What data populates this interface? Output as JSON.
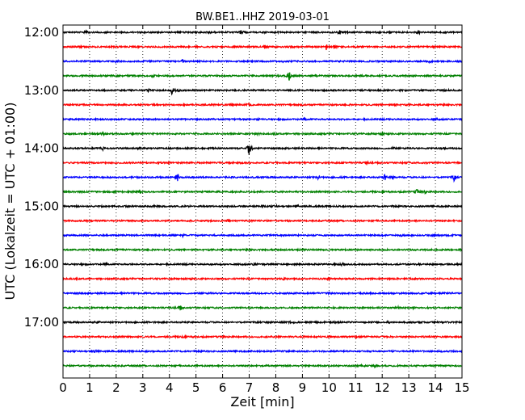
{
  "chart_data": {
    "type": "line",
    "title": "BW.BE1..HHZ 2019-03-01",
    "xlabel": "Zeit  [min]",
    "ylabel": "UTC (Lokalzeit = UTC + 01:00)",
    "xlim": [
      0,
      15
    ],
    "x_ticks": [
      "0",
      "1",
      "2",
      "3",
      "4",
      "5",
      "6",
      "7",
      "8",
      "9",
      "10",
      "11",
      "12",
      "13",
      "14",
      "15"
    ],
    "y_ticks": [
      "12:00",
      "13:00",
      "14:00",
      "15:00",
      "16:00",
      "17:00"
    ],
    "grid_x": true,
    "grid_y": false,
    "trace_interval_minutes": 15,
    "series_colors": [
      "#000000",
      "#ff0000",
      "#0000ff",
      "#008000"
    ],
    "traces": [
      {
        "start": "12:00",
        "color": "#000000",
        "events": [
          [
            0.9,
            0.6
          ],
          [
            5.6,
            0.5
          ],
          [
            6.7,
            0.8
          ],
          [
            10.4,
            0.9
          ],
          [
            13.4,
            0.6
          ]
        ]
      },
      {
        "start": "12:15",
        "color": "#ff0000",
        "events": [
          [
            7.6,
            0.7
          ],
          [
            9.9,
            1.1
          ],
          [
            10.2,
            0.8
          ],
          [
            8.6,
            0.4
          ]
        ]
      },
      {
        "start": "12:30",
        "color": "#0000ff",
        "events": [
          [
            2.0,
            0.4
          ],
          [
            4.5,
            0.7
          ],
          [
            8.3,
            0.4
          ],
          [
            13.8,
            0.7
          ]
        ]
      },
      {
        "start": "12:45",
        "color": "#008000",
        "events": [
          [
            3.4,
            0.4
          ],
          [
            8.5,
            1.8
          ],
          [
            9.5,
            0.5
          ],
          [
            11.2,
            0.4
          ]
        ]
      },
      {
        "start": "13:00",
        "color": "#000000",
        "events": [
          [
            3.2,
            0.5
          ],
          [
            4.1,
            1.7
          ],
          [
            4.3,
            0.9
          ],
          [
            14.4,
            0.6
          ]
        ]
      },
      {
        "start": "13:15",
        "color": "#ff0000",
        "events": [
          [
            7.0,
            0.5
          ],
          [
            12.5,
            0.4
          ]
        ]
      },
      {
        "start": "13:30",
        "color": "#0000ff",
        "events": [
          [
            5.1,
            0.4
          ],
          [
            9.1,
            0.4
          ],
          [
            14.0,
            0.4
          ]
        ]
      },
      {
        "start": "13:45",
        "color": "#008000",
        "events": [
          [
            1.5,
            0.6
          ],
          [
            7.3,
            0.3
          ],
          [
            12.0,
            0.3
          ]
        ]
      },
      {
        "start": "14:00",
        "color": "#000000",
        "events": [
          [
            1.5,
            0.5
          ],
          [
            2.9,
            0.6
          ],
          [
            7.0,
            3.2
          ],
          [
            12.4,
            0.5
          ],
          [
            14.3,
            0.4
          ]
        ]
      },
      {
        "start": "14:15",
        "color": "#ff0000",
        "events": [
          [
            11.4,
            0.6
          ],
          [
            13.6,
            0.3
          ]
        ]
      },
      {
        "start": "14:30",
        "color": "#0000ff",
        "events": [
          [
            4.3,
            1.6
          ],
          [
            9.6,
            0.7
          ],
          [
            12.1,
            1.0
          ],
          [
            12.4,
            0.7
          ],
          [
            14.7,
            1.2
          ]
        ]
      },
      {
        "start": "14:45",
        "color": "#008000",
        "events": [
          [
            2.9,
            0.6
          ],
          [
            13.3,
            0.9
          ],
          [
            13.6,
            0.6
          ]
        ]
      },
      {
        "start": "15:00",
        "color": "#000000",
        "events": [
          [
            3.4,
            0.3
          ],
          [
            7.5,
            0.4
          ],
          [
            8.0,
            0.4
          ],
          [
            8.8,
            0.5
          ]
        ]
      },
      {
        "start": "15:15",
        "color": "#ff0000",
        "events": [
          [
            6.2,
            0.3
          ]
        ]
      },
      {
        "start": "15:30",
        "color": "#0000ff",
        "events": [
          [
            4.5,
            0.4
          ],
          [
            12.7,
            0.5
          ]
        ]
      },
      {
        "start": "15:45",
        "color": "#008000",
        "events": [
          [
            2.1,
            0.3
          ],
          [
            9.0,
            0.3
          ]
        ]
      },
      {
        "start": "16:00",
        "color": "#000000",
        "events": [
          [
            1.6,
            0.4
          ],
          [
            7.2,
            0.8
          ],
          [
            10.5,
            0.4
          ],
          [
            13.4,
            0.4
          ]
        ]
      },
      {
        "start": "16:15",
        "color": "#ff0000",
        "events": [
          [
            8.3,
            0.3
          ],
          [
            10.0,
            0.3
          ]
        ]
      },
      {
        "start": "16:30",
        "color": "#0000ff",
        "events": [
          [
            10.0,
            0.3
          ]
        ]
      },
      {
        "start": "16:45",
        "color": "#008000",
        "events": [
          [
            4.4,
            0.8
          ],
          [
            13.2,
            0.5
          ],
          [
            12.6,
            0.3
          ]
        ]
      },
      {
        "start": "17:00",
        "color": "#000000",
        "events": [
          [
            1.3,
            0.5
          ],
          [
            8.6,
            0.6
          ],
          [
            12.2,
            0.3
          ]
        ]
      },
      {
        "start": "17:15",
        "color": "#ff0000",
        "events": [
          [
            4.5,
            0.3
          ],
          [
            11.0,
            0.3
          ]
        ]
      },
      {
        "start": "17:30",
        "color": "#0000ff",
        "events": [
          [
            1.2,
            0.5
          ],
          [
            14.2,
            0.3
          ]
        ]
      },
      {
        "start": "17:45",
        "color": "#008000",
        "events": [
          [
            11.3,
            0.5
          ],
          [
            11.7,
            0.3
          ]
        ]
      }
    ]
  }
}
